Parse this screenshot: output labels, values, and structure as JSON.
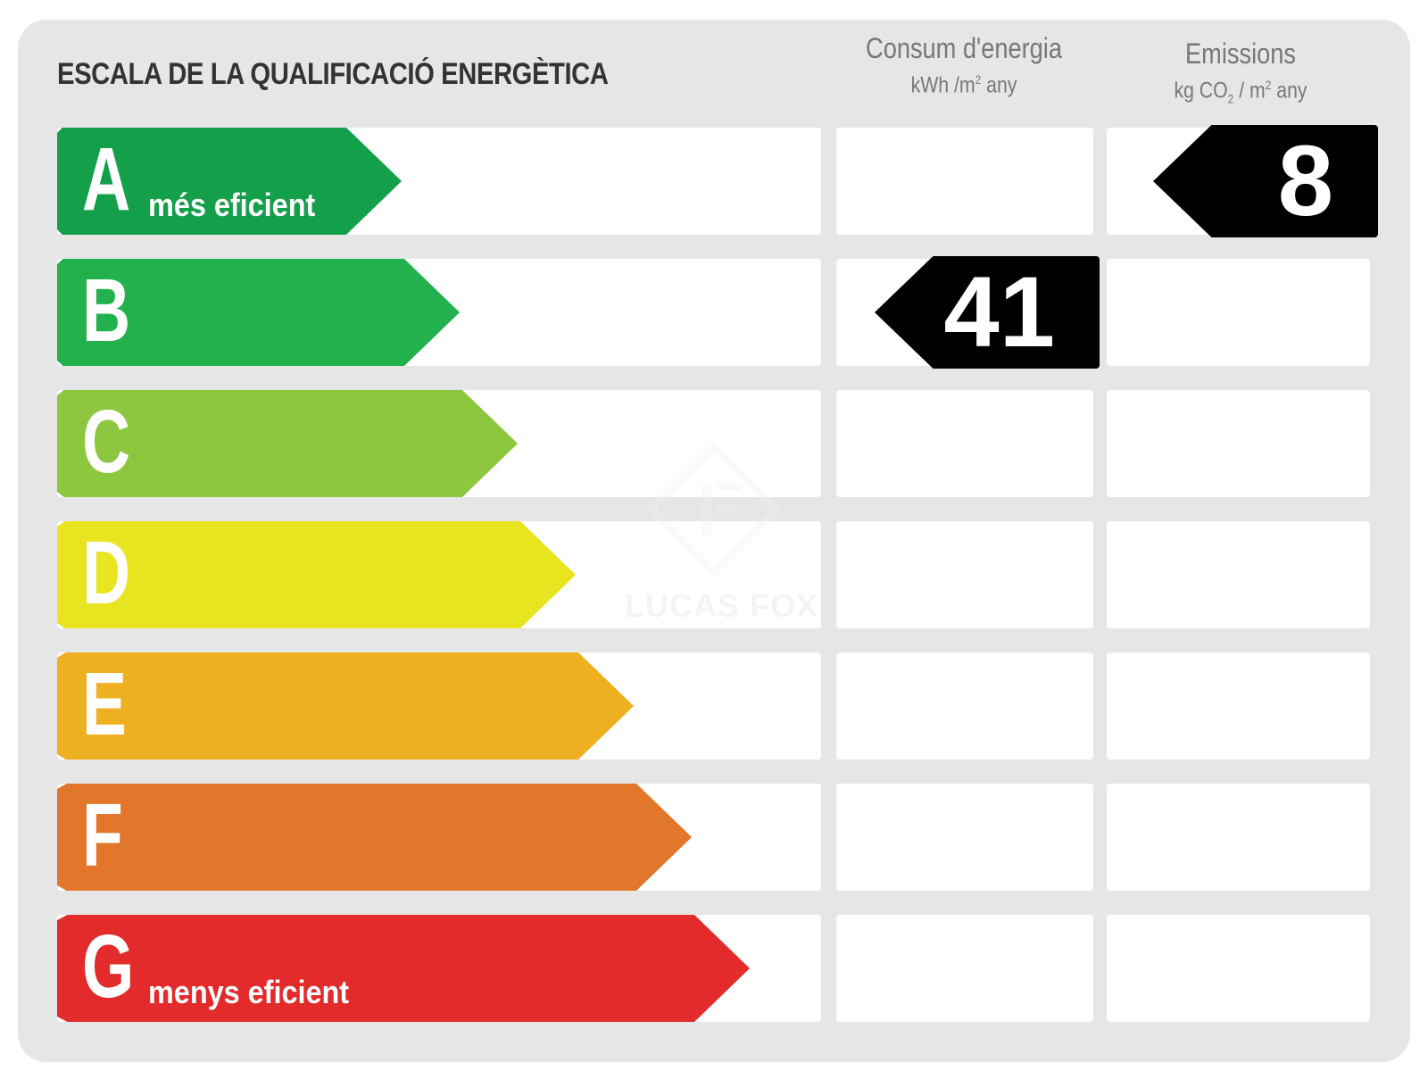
{
  "title": "ESCALA DE LA QUALIFICACIÓ ENERGÈTICA",
  "columns": {
    "energy": {
      "title": "Consum d'energia",
      "unit_pre": "kWh /m",
      "unit_sup": "2",
      "unit_post": " any"
    },
    "emissions": {
      "title": "Emissions",
      "unit_a": "kg CO",
      "unit_sub": "2",
      "unit_b": " / m",
      "unit_sup": "2",
      "unit_post": " any"
    }
  },
  "ratings": [
    {
      "letter": "A",
      "label": "més eficient",
      "color": "#14a04b"
    },
    {
      "letter": "B",
      "label": "",
      "color": "#22b14c"
    },
    {
      "letter": "C",
      "label": "",
      "color": "#8dc63f"
    },
    {
      "letter": "D",
      "label": "",
      "color": "#e8e520"
    },
    {
      "letter": "E",
      "label": "",
      "color": "#eeb020"
    },
    {
      "letter": "F",
      "label": "",
      "color": "#e2762a"
    },
    {
      "letter": "G",
      "label": "menys eficient",
      "color": "#e22b2a"
    }
  ],
  "energy_value": {
    "value": "41",
    "rating": "B"
  },
  "emissions_value": {
    "value": "8",
    "rating": "A"
  },
  "watermark": "LUCAS FOX"
}
